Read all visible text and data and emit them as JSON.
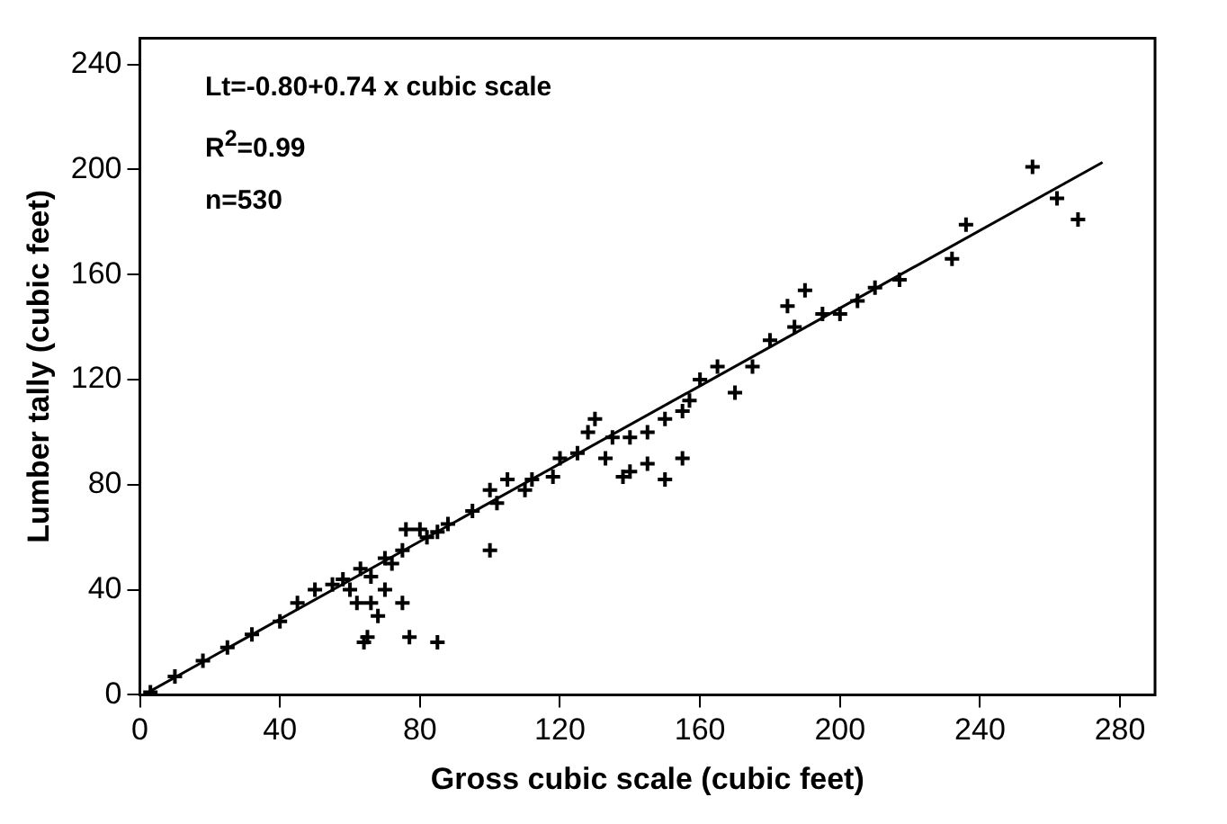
{
  "chart_data": {
    "type": "scatter",
    "xlabel": "Gross cubic scale (cubic feet)",
    "ylabel": "Lumber tally (cubic feet)",
    "annotations": [
      "Lt=-0.80+0.74 x cubic scale",
      "R$^{2}$=0.99",
      "n=530"
    ],
    "xlim": [
      0,
      290
    ],
    "ylim": [
      0,
      250
    ],
    "xticks": [
      0,
      40,
      80,
      120,
      160,
      200,
      240,
      280
    ],
    "yticks": [
      0,
      40,
      80,
      120,
      160,
      200,
      240
    ],
    "grid": false,
    "legend": false,
    "marker": "cross",
    "series": [
      {
        "color": "#000000",
        "x": [
          255,
          262,
          268,
          236,
          232,
          217,
          210,
          205,
          200,
          195,
          190,
          185,
          187,
          180,
          175,
          165,
          170,
          160,
          157,
          155,
          150,
          145,
          140,
          130,
          128,
          135,
          133,
          140,
          145,
          150,
          155,
          138,
          125,
          120,
          118,
          112,
          110,
          100,
          105,
          102,
          100,
          95,
          88,
          85,
          80,
          76,
          82,
          75,
          72,
          70,
          68,
          75,
          65,
          64,
          77,
          85,
          62,
          66,
          60,
          58,
          55,
          50,
          45,
          40,
          32,
          25,
          18,
          10,
          3,
          63,
          70,
          66
        ],
        "values": [
          201,
          189,
          181,
          179,
          166,
          158,
          155,
          150,
          145,
          145,
          154,
          148,
          140,
          135,
          125,
          125,
          115,
          120,
          112,
          108,
          105,
          100,
          98,
          105,
          100,
          98,
          90,
          85,
          88,
          82,
          90,
          83,
          92,
          90,
          83,
          82,
          78,
          78,
          82,
          73,
          55,
          70,
          65,
          62,
          63,
          63,
          60,
          55,
          50,
          40,
          30,
          35,
          22,
          20,
          22,
          20,
          35,
          35,
          40,
          44,
          42,
          40,
          35,
          28,
          23,
          18,
          13,
          7,
          1,
          48,
          52,
          45
        ]
      },
      {
        "type": "line",
        "marker": "none",
        "color": "#000000",
        "x": [
          2,
          275
        ],
        "values": [
          0.7,
          202.7
        ]
      }
    ]
  }
}
